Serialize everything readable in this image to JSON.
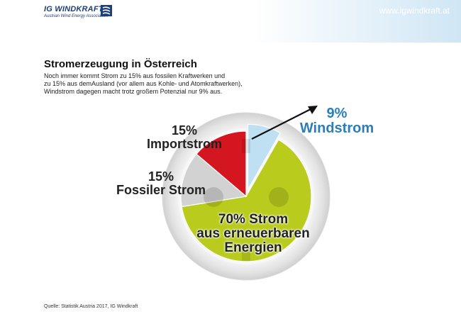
{
  "header": {
    "logo_title": "IG WINDKRAFT",
    "logo_subtitle": "Austrian Wind Energy Association",
    "site_url": "www.igwindkraft.at"
  },
  "title": "Stromerzeugung in Österreich",
  "description_lines": [
    "Noch immer kommt Strom zu 15% aus fossilen Kraftwerken und",
    "zu 15% aus demAusland (vor allem aus Kohle- und Atomkraftwerken),",
    "Windstrom dagegen macht trotz großem Potenzial nur 9% aus."
  ],
  "labels": {
    "wind": [
      "9%",
      "Windstrom"
    ],
    "import": [
      "15%",
      "Importstrom"
    ],
    "fossil": [
      "15%",
      "Fossiler Strom"
    ],
    "renewable": [
      "70% Strom",
      "aus erneuerbaren",
      "Energien"
    ]
  },
  "chart_data": {
    "type": "pie",
    "categories": [
      "Windstrom",
      "Strom aus erneuerbaren Energien",
      "Fossiler Strom",
      "Importstrom"
    ],
    "values": [
      9,
      70,
      15,
      15
    ],
    "colors": [
      "#bfe0f2",
      "#b9cc1e",
      "#d2d2d2",
      "#d3161f"
    ]
  },
  "source": "Quelle: Statistik Austria 2017, IG Windkraft"
}
